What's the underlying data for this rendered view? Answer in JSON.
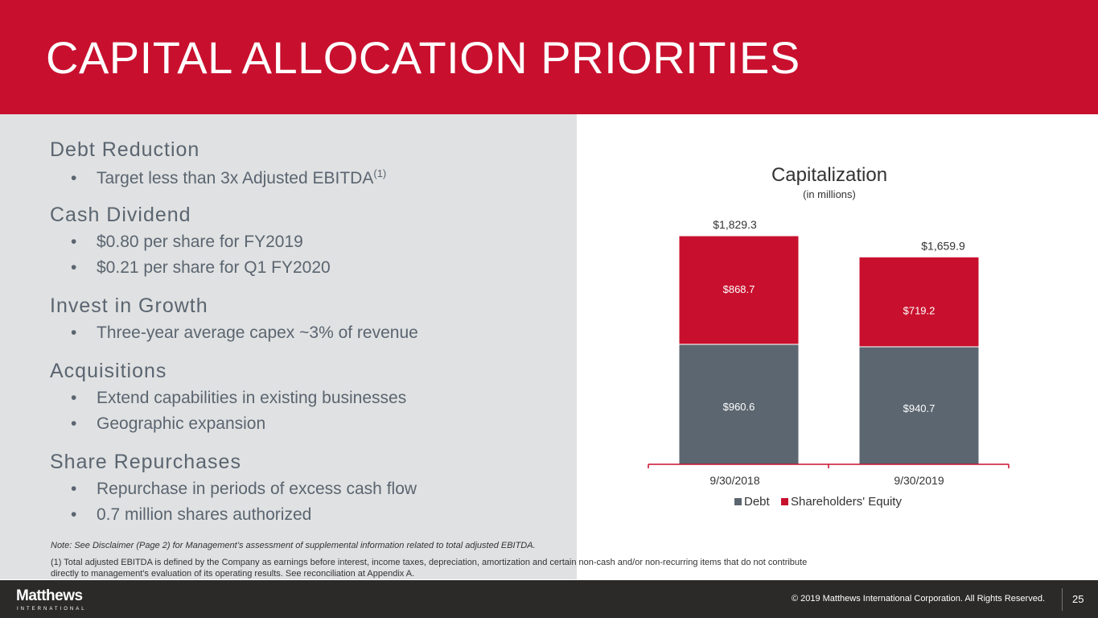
{
  "header": {
    "title": "CAPITAL ALLOCATION PRIORITIES"
  },
  "sections": [
    {
      "title": "Debt Reduction",
      "bullets": [
        {
          "text": "Target less than 3x Adjusted EBITDA",
          "sup": "(1)"
        }
      ]
    },
    {
      "title": "Cash Dividend",
      "bullets": [
        {
          "text": "$0.80 per share for FY2019"
        },
        {
          "text": "$0.21 per share for Q1 FY2020"
        }
      ]
    },
    {
      "title": "Invest in Growth",
      "bullets": [
        {
          "text": "Three-year average capex ~3% of revenue"
        }
      ]
    },
    {
      "title": "Acquisitions",
      "bullets": [
        {
          "text": "Extend capabilities in existing businesses"
        },
        {
          "text": "Geographic expansion"
        }
      ]
    },
    {
      "title": "Share Repurchases",
      "bullets": [
        {
          "text": "Repurchase in periods of excess cash flow"
        },
        {
          "text": "0.7 million shares authorized"
        }
      ]
    }
  ],
  "bullet_glyph": "•",
  "notes": {
    "note": "Note: See Disclaimer (Page 2) for Management’s assessment of supplemental information related to total adjusted EBITDA.",
    "footnote_line1": "(1) Total adjusted EBITDA is defined by the Company as earnings before interest, income taxes, depreciation, amortization and certain non-cash and/or non-recurring items that do not contribute",
    "footnote_line2": "directly to management's evaluation of its operating results. See reconciliation at Appendix A."
  },
  "footer": {
    "logo_name": "Matthews",
    "logo_sub": "INTERNATIONAL",
    "copyright": "© 2019 Matthews International Corporation. All Rights Reserved.",
    "page_number": "25"
  },
  "colors": {
    "brand_red": "#c8102e",
    "debt_gray": "#5b6670",
    "panel_gray": "#e0e1e2",
    "footer_dark": "#2b2a29"
  },
  "chart_data": {
    "type": "bar",
    "stacked": true,
    "title": "Capitalization",
    "subtitle": "(in millions)",
    "categories": [
      "9/30/2018",
      "9/30/2019"
    ],
    "series": [
      {
        "name": "Debt",
        "values": [
          960.6,
          940.7
        ],
        "labels": [
          "$960.6",
          "$940.7"
        ],
        "color": "#5b6670"
      },
      {
        "name": "Shareholders' Equity",
        "values": [
          868.7,
          719.2
        ],
        "labels": [
          "$868.7",
          "$719.2"
        ],
        "color": "#c8102e"
      }
    ],
    "totals": [
      1829.3,
      1659.9
    ],
    "total_labels": [
      "$1,829.3",
      "$1,659.9"
    ],
    "ylim": [
      0,
      1829.3
    ],
    "grid": false,
    "legend": "bottom"
  }
}
